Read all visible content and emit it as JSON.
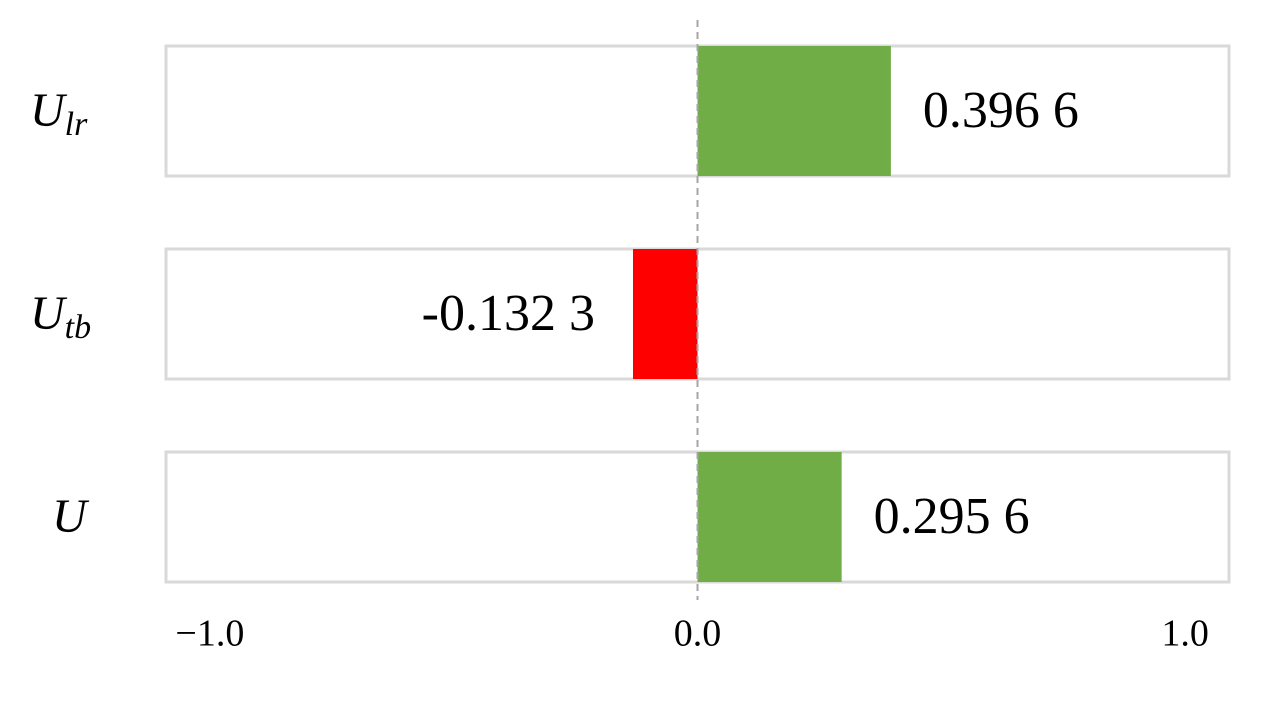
{
  "chart_data": {
    "type": "bar",
    "orientation": "horizontal",
    "categories": [
      [
        "U",
        "lr"
      ],
      [
        "U",
        "tb"
      ],
      [
        "U"
      ]
    ],
    "values": [
      0.3966,
      -0.1323,
      0.2956
    ],
    "value_labels": [
      "0.396 6",
      "-0.132 3",
      "0.295 6"
    ],
    "positive_color": "#70ad47",
    "negative_color": "#ff0000",
    "xlim": [
      -1.09,
      1.09
    ],
    "xticks": [
      {
        "value": -1,
        "label": "−1.0"
      },
      {
        "value": 0,
        "label": "0.0"
      },
      {
        "value": 1,
        "label": "1.0"
      }
    ]
  }
}
